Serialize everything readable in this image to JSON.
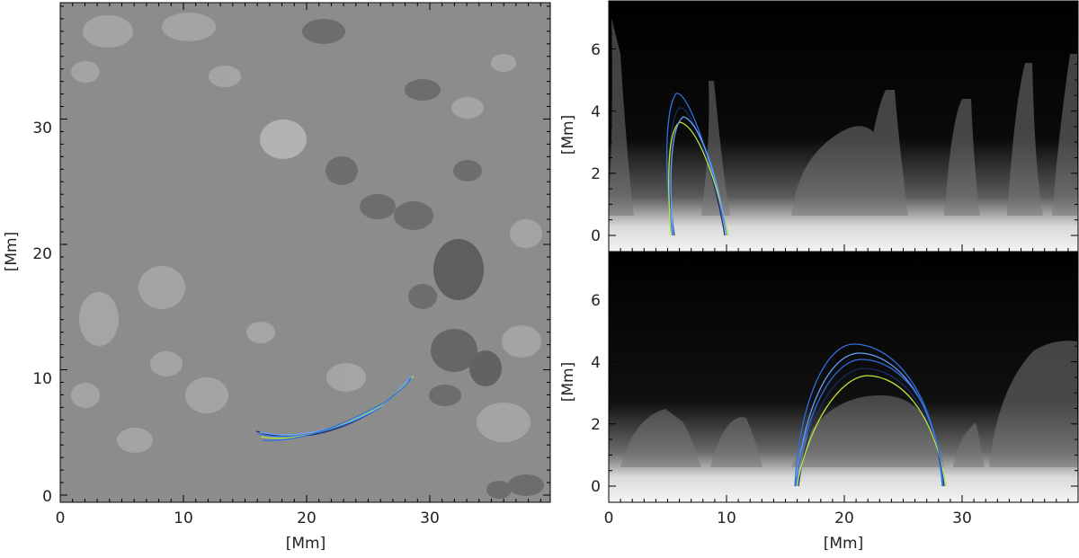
{
  "panels": {
    "left": {
      "x_ticks": [
        "0",
        "10",
        "20",
        "30"
      ],
      "y_ticks": [
        "0",
        "10",
        "20",
        "30"
      ],
      "xlabel": "[Mm]",
      "ylabel": "[Mm]"
    },
    "right_top": {
      "y_ticks": [
        "0",
        "2",
        "4",
        "6"
      ],
      "ylabel": "[Mm]"
    },
    "right_bottom": {
      "x_ticks": [
        "0",
        "10",
        "20",
        "30"
      ],
      "y_ticks": [
        "0",
        "2",
        "4",
        "6"
      ],
      "xlabel": "[Mm]",
      "ylabel": "[Mm]"
    }
  },
  "colors": {
    "loop_blue": "#2f6fe0",
    "loop_lightblue": "#6aa0ff",
    "loop_green": "#b8e83a",
    "loop_dark": "#1a2a66"
  }
}
